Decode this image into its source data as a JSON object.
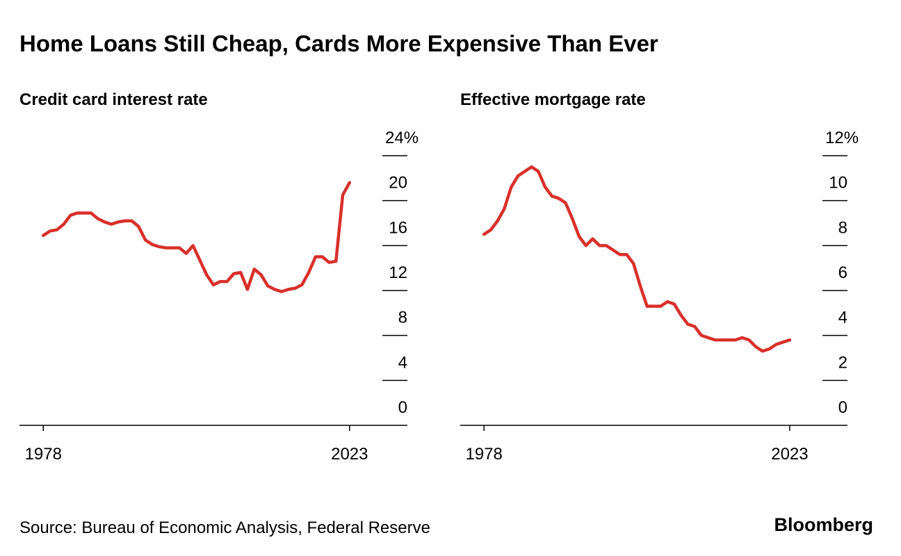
{
  "title": "Home Loans Still Cheap, Cards More Expensive Than Ever",
  "source": "Source: Bureau of Economic Analysis, Federal Reserve",
  "brand": "Bloomberg",
  "chart_data": [
    {
      "type": "line",
      "title": "Credit card interest rate",
      "color": "#d9302a",
      "x": [
        1978,
        1979,
        1980,
        1981,
        1982,
        1983,
        1984,
        1985,
        1986,
        1987,
        1988,
        1989,
        1990,
        1991,
        1992,
        1993,
        1994,
        1995,
        1996,
        1997,
        1998,
        1999,
        2000,
        2001,
        2002,
        2003,
        2004,
        2005,
        2006,
        2007,
        2008,
        2009,
        2010,
        2011,
        2012,
        2013,
        2014,
        2015,
        2016,
        2017,
        2018,
        2019,
        2020,
        2021,
        2022,
        2023
      ],
      "values": [
        16.9,
        17.3,
        17.4,
        17.9,
        18.7,
        18.9,
        18.9,
        18.9,
        18.4,
        18.1,
        17.9,
        18.1,
        18.2,
        18.2,
        17.7,
        16.5,
        16.1,
        15.9,
        15.8,
        15.8,
        15.8,
        15.3,
        16.0,
        14.7,
        13.4,
        12.5,
        12.8,
        12.8,
        13.5,
        13.6,
        12.1,
        13.9,
        13.4,
        12.4,
        12.1,
        11.9,
        12.1,
        12.2,
        12.5,
        13.6,
        15.0,
        15.0,
        14.5,
        14.6,
        20.5,
        21.6
      ],
      "xlim": [
        1974.5,
        2031.5
      ],
      "xticks": [
        1978,
        2023
      ],
      "ylim": [
        0,
        24
      ],
      "yticks": [
        0,
        4,
        8,
        12,
        16,
        20,
        {
          "value": 24,
          "label": "24%"
        }
      ]
    },
    {
      "type": "line",
      "title": "Effective mortgage rate",
      "color": "#d9302a",
      "x": [
        1978,
        1979,
        1980,
        1981,
        1982,
        1983,
        1984,
        1985,
        1986,
        1987,
        1988,
        1989,
        1990,
        1991,
        1992,
        1993,
        1994,
        1995,
        1996,
        1997,
        1998,
        1999,
        2000,
        2001,
        2002,
        2003,
        2004,
        2005,
        2006,
        2007,
        2008,
        2009,
        2010,
        2011,
        2012,
        2013,
        2014,
        2015,
        2016,
        2017,
        2018,
        2019,
        2020,
        2021,
        2022,
        2023
      ],
      "values": [
        8.5,
        8.7,
        9.1,
        9.65,
        10.6,
        11.1,
        11.3,
        11.5,
        11.3,
        10.6,
        10.2,
        10.1,
        9.9,
        9.2,
        8.4,
        8.0,
        8.3,
        8.0,
        8.0,
        7.8,
        7.6,
        7.6,
        7.2,
        6.2,
        5.3,
        5.3,
        5.3,
        5.5,
        5.4,
        4.9,
        4.5,
        4.4,
        4.0,
        3.9,
        3.8,
        3.8,
        3.8,
        3.8,
        3.9,
        3.8,
        3.5,
        3.3,
        3.4,
        3.6,
        3.7,
        3.8
      ],
      "xlim": [
        1974.5,
        2031.5
      ],
      "xticks": [
        1978,
        2023
      ],
      "ylim": [
        0,
        12
      ],
      "yticks": [
        0,
        2,
        4,
        6,
        8,
        10,
        {
          "value": 12,
          "label": "12%"
        }
      ]
    }
  ]
}
